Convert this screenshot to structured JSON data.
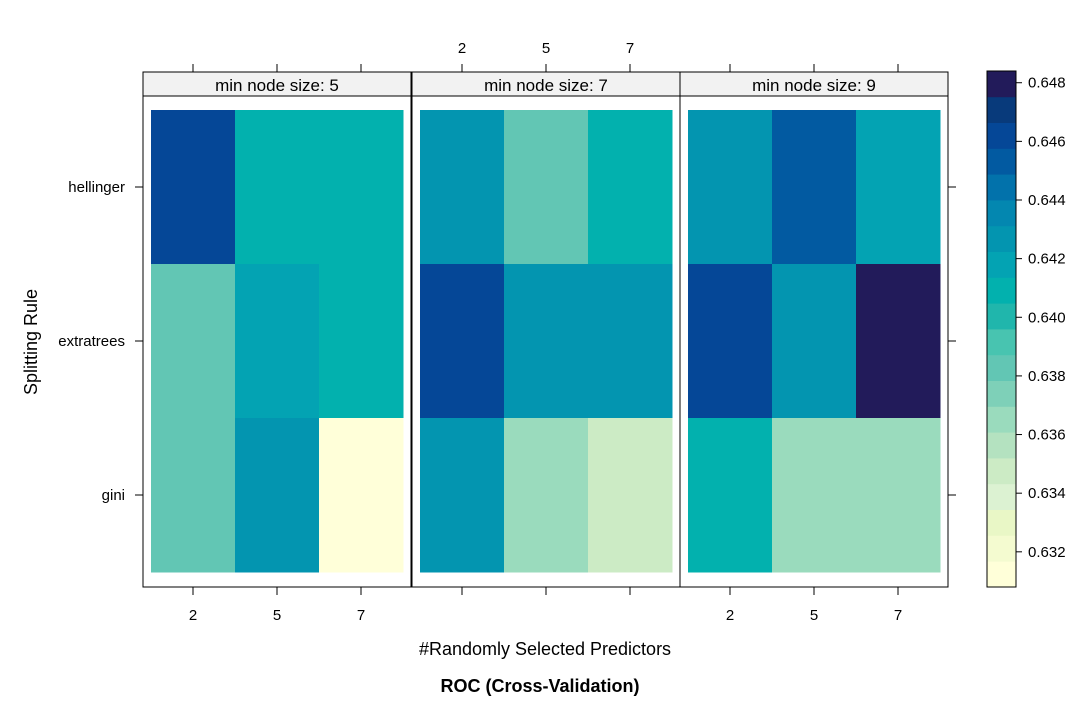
{
  "chart_data": {
    "type": "heatmap",
    "title": "ROC (Cross-Validation)",
    "xlabel": "#Randomly Selected Predictors",
    "ylabel": "Splitting Rule",
    "x_categories": [
      "2",
      "5",
      "7"
    ],
    "y_categories": [
      "gini",
      "extratrees",
      "hellinger"
    ],
    "panels": [
      {
        "strip": "min node size: 5",
        "values": {
          "hellinger": [
            0.6465,
            0.6405,
            0.6405
          ],
          "extratrees": [
            0.6385,
            0.6415,
            0.6405
          ],
          "gini": [
            0.6385,
            0.6425,
            0.631
          ]
        }
      },
      {
        "strip": "min node size: 7",
        "values": {
          "hellinger": [
            0.6425,
            0.6385,
            0.6405
          ],
          "extratrees": [
            0.646,
            0.6425,
            0.6425
          ],
          "gini": [
            0.6425,
            0.6365,
            0.6345
          ]
        }
      },
      {
        "strip": "min node size: 9",
        "values": {
          "hellinger": [
            0.6425,
            0.645,
            0.6415
          ],
          "extratrees": [
            0.646,
            0.6425,
            0.648
          ],
          "gini": [
            0.6405,
            0.6365,
            0.6365
          ]
        }
      }
    ],
    "colorbar": {
      "ticks": [
        "0.632",
        "0.634",
        "0.636",
        "0.638",
        "0.640",
        "0.642",
        "0.644",
        "0.646",
        "0.648"
      ],
      "range": [
        0.6308,
        0.6484
      ],
      "colors": [
        "#ffffd9",
        "#f4fbd0",
        "#e9f7c6",
        "#dcf2d2",
        "#ccebc5",
        "#b4e2c0",
        "#9adbbd",
        "#7ed0b8",
        "#62c6b4",
        "#48c4b0",
        "#20b6ac",
        "#02b1ae",
        "#03a3b3",
        "#0395b0",
        "#0387b0",
        "#0272ab",
        "#025aa1",
        "#054797",
        "#083a7b",
        "#221b5a"
      ]
    }
  }
}
